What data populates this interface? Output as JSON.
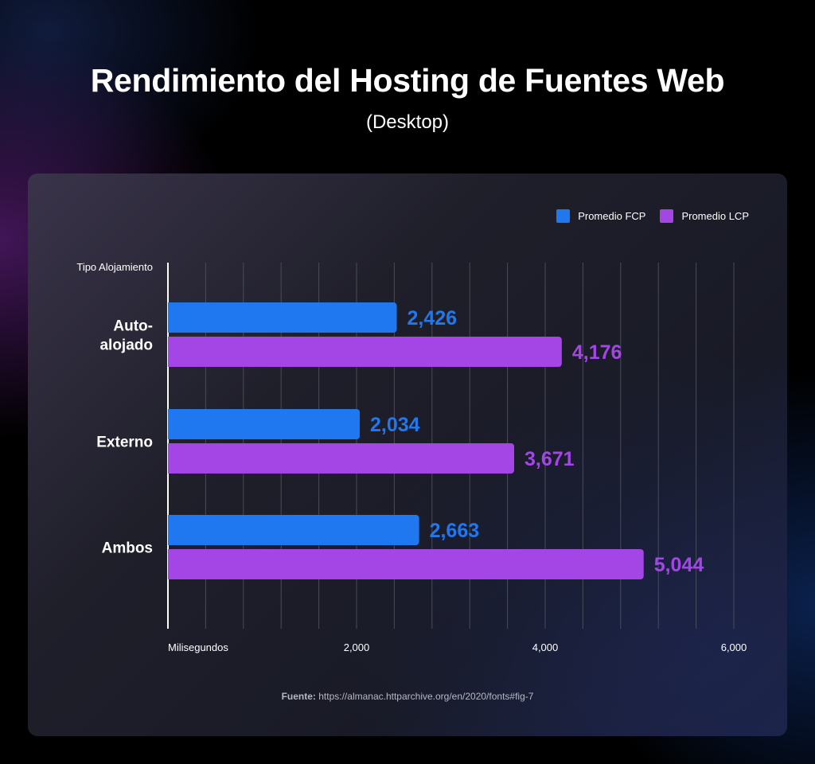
{
  "title": "Rendimiento del Hosting de Fuentes Web",
  "subtitle": "(Desktop)",
  "legend": [
    {
      "label": "Promedio FCP",
      "color": "#1f78f0"
    },
    {
      "label": "Promedio LCP",
      "color": "#a446e6"
    }
  ],
  "chart_data": {
    "type": "bar",
    "orientation": "horizontal",
    "y_axis_label": "Tipo Alojamiento",
    "x_axis_label": "Milisegundos",
    "categories": [
      [
        "Auto-",
        "alojado"
      ],
      [
        "Externo"
      ],
      [
        "Ambos"
      ]
    ],
    "series": [
      {
        "name": "Promedio FCP",
        "values": [
          2426,
          2034,
          2663
        ],
        "labels": [
          "2,426",
          "2,034",
          "2,663"
        ],
        "color": "#1f78f0"
      },
      {
        "name": "Promedio LCP",
        "values": [
          4176,
          3671,
          5044
        ],
        "labels": [
          "4,176",
          "3,671",
          "5,044"
        ],
        "color": "#a446e6"
      }
    ],
    "xlim": [
      0,
      6000
    ],
    "x_ticks": [
      2000,
      4000,
      6000
    ],
    "x_tick_labels": [
      "2,000",
      "4,000",
      "6,000"
    ],
    "grid_step": 400,
    "grid": true,
    "legend_position": "top-right"
  },
  "source": {
    "prefix": "Fuente:",
    "url": "https://almanac.httparchive.org/en/2020/fonts#fig-7"
  }
}
